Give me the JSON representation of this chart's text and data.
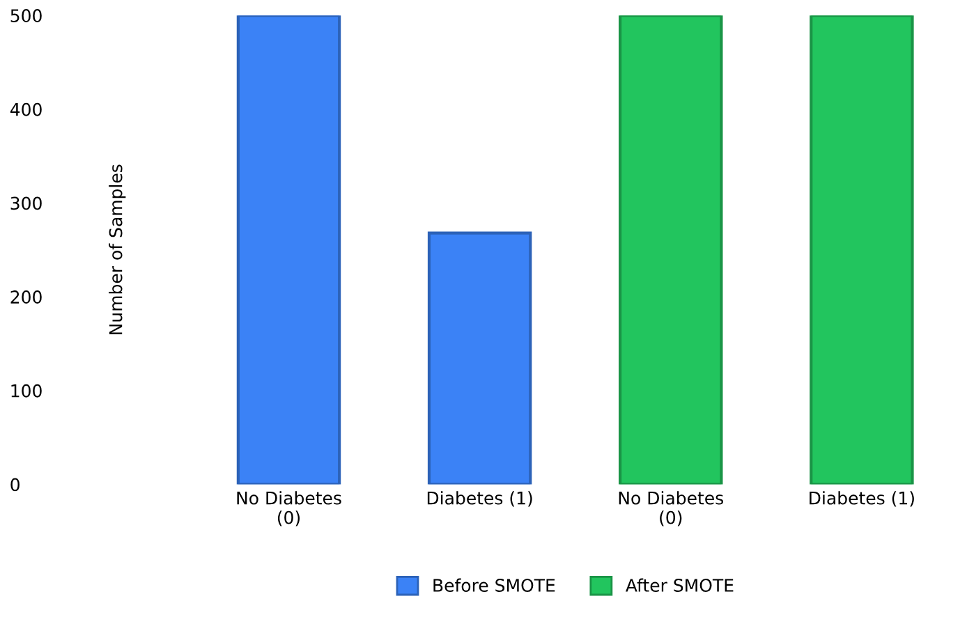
{
  "chart_data": {
    "type": "bar",
    "ylabel": "Number of Samples",
    "categories": [
      "No Diabetes\n(0)",
      "Diabetes (1)",
      "No Diabetes\n(0)",
      "Diabetes (1)"
    ],
    "series": [
      {
        "name": "Before SMOTE",
        "color": "#3b82f6",
        "values": [
          500,
          268,
          null,
          null
        ]
      },
      {
        "name": "After SMOTE",
        "color": "#22c55e",
        "values": [
          null,
          null,
          500,
          500
        ]
      }
    ],
    "ylim": [
      0,
      500
    ],
    "yticks": [
      0,
      100,
      200,
      300,
      400,
      500
    ],
    "grid": false,
    "legend": "bottom"
  }
}
